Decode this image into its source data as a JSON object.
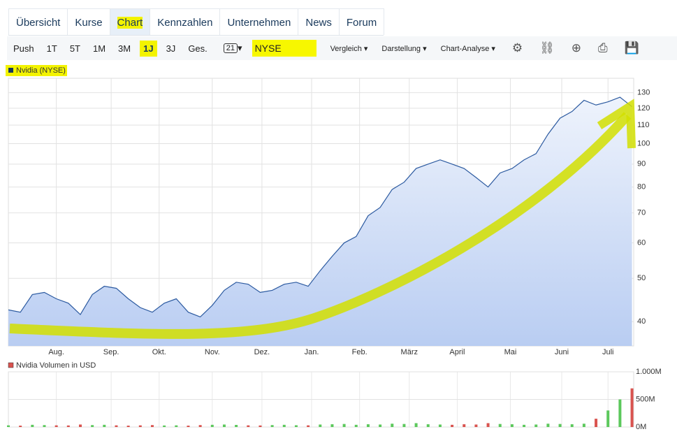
{
  "tabs": [
    "Übersicht",
    "Kurse",
    "Chart",
    "Kennzahlen",
    "Unternehmen",
    "News",
    "Forum"
  ],
  "active_tab": 2,
  "toolbar": {
    "ranges": [
      "Push",
      "1T",
      "5T",
      "1M",
      "3M",
      "1J",
      "3J",
      "Ges."
    ],
    "active_range": 5,
    "calendar": "21",
    "exchange": "NYSE",
    "menus": [
      "Vergleich",
      "Darstellung",
      "Chart-Analyse"
    ]
  },
  "chart_data": [
    {
      "type": "line",
      "legend": "Nvidia (NYSE)",
      "color": "#2c5aa0",
      "fill": "#c4d6f5",
      "log": true,
      "grid": true,
      "x": [
        0,
        7,
        14,
        21,
        28,
        35,
        42,
        49,
        56,
        63,
        70,
        77,
        84,
        91,
        98,
        105,
        112,
        119,
        126,
        133,
        140,
        147,
        154,
        161,
        168,
        175,
        182,
        189,
        196,
        203,
        210,
        217,
        224,
        231,
        238,
        245,
        252,
        259,
        266,
        273,
        280,
        287,
        294,
        301,
        308,
        315,
        322,
        329,
        336,
        343,
        350,
        357,
        364
      ],
      "values": [
        42.5,
        42,
        46,
        46.5,
        45,
        44,
        41.5,
        46,
        48,
        47.5,
        45,
        43,
        42,
        44,
        45,
        42,
        41,
        43.5,
        47,
        49,
        48.5,
        46.5,
        47,
        48.5,
        49,
        48,
        52,
        56,
        60,
        62,
        69,
        72,
        79,
        82,
        88,
        90,
        92,
        90,
        88,
        84,
        80,
        86,
        88,
        92,
        95,
        105,
        114,
        118,
        125,
        122,
        124,
        127,
        121
      ],
      "xlim": [
        0,
        365
      ],
      "xticks": [
        {
          "value": 28,
          "label": "Aug."
        },
        {
          "value": 60,
          "label": "Sep."
        },
        {
          "value": 88,
          "label": "Okt."
        },
        {
          "value": 119,
          "label": "Nov."
        },
        {
          "value": 148,
          "label": "Dez."
        },
        {
          "value": 177,
          "label": "Jan."
        },
        {
          "value": 205,
          "label": "Feb."
        },
        {
          "value": 234,
          "label": "März"
        },
        {
          "value": 262,
          "label": "April"
        },
        {
          "value": 293,
          "label": "Mai"
        },
        {
          "value": 323,
          "label": "Juni"
        },
        {
          "value": 350,
          "label": "Juli"
        }
      ],
      "ylim": [
        35.3,
        140
      ],
      "yticks": [
        40,
        50,
        60,
        70,
        80,
        90,
        100,
        110,
        120,
        130
      ]
    },
    {
      "type": "bar",
      "legend": "Nvidia Volumen in USD",
      "up_color": "#5cc85c",
      "down_color": "#d9534f",
      "grid": true,
      "values": [
        30,
        25,
        40,
        35,
        30,
        28,
        45,
        35,
        40,
        30,
        25,
        30,
        35,
        28,
        30,
        25,
        35,
        40,
        45,
        38,
        30,
        28,
        35,
        40,
        32,
        30,
        45,
        50,
        55,
        40,
        50,
        45,
        60,
        55,
        70,
        50,
        45,
        40,
        50,
        45,
        70,
        55,
        50,
        40,
        45,
        60,
        55,
        50,
        60,
        150,
        300,
        500,
        700
      ],
      "ylim": [
        0,
        1000
      ],
      "yticks": [
        {
          "value": 0,
          "label": "0M"
        },
        {
          "value": 500,
          "label": "500M"
        },
        {
          "value": 1000,
          "label": "1.000M"
        }
      ]
    }
  ]
}
